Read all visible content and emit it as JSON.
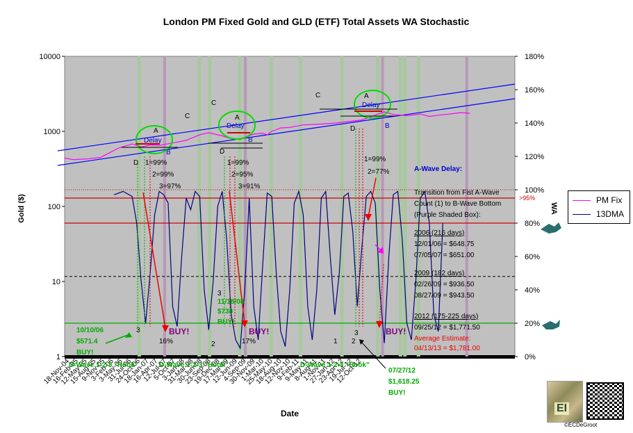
{
  "chart_data": {
    "type": "line",
    "title": "London PM Fixed Gold and GLD (ETF) Total Assets WA Stochastic",
    "xlabel": "Date",
    "ylabel": "Gold ($)",
    "y2label": "WA",
    "y_scale": "log",
    "ylim": [
      1,
      10000
    ],
    "y_ticks": [
      "1",
      "10",
      "100",
      "1000",
      "10000"
    ],
    "y2lim": [
      0,
      180
    ],
    "y2_ticks": [
      "0%",
      "20%",
      "40%",
      "60%",
      "80%",
      "100%",
      "120%",
      "140%",
      "160%",
      "180%"
    ],
    "x_tick_labels": [
      "18-Nov-04",
      "16-Feb-05",
      "12-May-05",
      "15-Aug-05",
      "9-Nov-05",
      "3-Feb-06",
      "3-May-06",
      "31-Jul-06",
      "24-Oct-06",
      "18-Jan-07",
      "16-Apr-07",
      "12-Jul-07",
      "5-Oct-07",
      "3-Jan-08",
      "31-Mar-08",
      "30-Jun-08",
      "23-Sep-08",
      "19-Dec-08",
      "17-Mar-09",
      "12-Jun-09",
      "4-Sep-09",
      "30-Nov-09",
      "1-Mar-10",
      "25-May-10",
      "18-Aug-10",
      "12-Nov-10",
      "9-Feb-11",
      "9-May-11",
      "8-Aug-11",
      "1-Nov-11",
      "27-Jan-12",
      "23-Apr-12",
      "19-Jul-12",
      "12-Oct-12"
    ],
    "legend": [
      {
        "name": "PM Fix",
        "color": "#ff00ff"
      },
      {
        "name": "13DMA",
        "color": "#000080"
      }
    ],
    "series": [
      {
        "name": "PM Fix",
        "axis": "left",
        "color": "#ff00ff",
        "x": [
          0,
          0.02,
          0.05,
          0.08,
          0.1,
          0.12,
          0.15,
          0.17,
          0.19,
          0.21,
          0.24,
          0.27,
          0.3,
          0.32,
          0.35,
          0.37,
          0.39,
          0.42,
          0.44,
          0.45,
          0.46,
          0.48,
          0.5,
          0.53,
          0.56,
          0.6,
          0.63,
          0.66,
          0.68,
          0.71,
          0.73,
          0.76,
          0.79,
          0.81,
          0.83,
          0.86,
          0.88,
          0.9
        ],
        "values": [
          440,
          420,
          430,
          450,
          520,
          600,
          680,
          620,
          660,
          650,
          700,
          760,
          900,
          960,
          870,
          800,
          780,
          920,
          940,
          900,
          1000,
          1110,
          1130,
          1220,
          1240,
          1290,
          1350,
          1420,
          1560,
          1820,
          1680,
          1620,
          1700,
          1580,
          1640,
          1720,
          1780,
          1740
        ]
      },
      {
        "name": "13DMA",
        "axis": "right",
        "color": "#000080",
        "x": [
          0.11,
          0.13,
          0.15,
          0.16,
          0.17,
          0.18,
          0.19,
          0.2,
          0.21,
          0.22,
          0.23,
          0.24,
          0.25,
          0.26,
          0.27,
          0.28,
          0.29,
          0.3,
          0.31,
          0.32,
          0.33,
          0.34,
          0.35,
          0.36,
          0.37,
          0.38,
          0.39,
          0.4,
          0.41,
          0.42,
          0.43,
          0.44,
          0.45,
          0.46,
          0.47,
          0.48,
          0.49,
          0.5,
          0.51,
          0.52,
          0.53,
          0.54,
          0.55,
          0.56,
          0.57,
          0.58,
          0.59,
          0.6,
          0.61,
          0.62,
          0.63,
          0.64,
          0.65,
          0.66,
          0.67,
          0.68,
          0.69,
          0.7,
          0.71,
          0.72,
          0.73,
          0.74,
          0.75,
          0.76,
          0.77,
          0.78,
          0.79,
          0.8,
          0.81,
          0.82,
          0.83,
          0.84
        ],
        "values": [
          97,
          99,
          96,
          80,
          45,
          20,
          50,
          85,
          99,
          97,
          92,
          30,
          18,
          60,
          95,
          88,
          99,
          96,
          40,
          16,
          45,
          90,
          99,
          70,
          25,
          10,
          5,
          40,
          95,
          30,
          10,
          55,
          98,
          96,
          50,
          15,
          6,
          40,
          92,
          99,
          85,
          30,
          10,
          40,
          95,
          99,
          60,
          25,
          50,
          96,
          98,
          75,
          30,
          65,
          96,
          99,
          92,
          40,
          8,
          60,
          97,
          99,
          70,
          20,
          10,
          45,
          95,
          99,
          80,
          25,
          15,
          80
        ]
      }
    ],
    "reference_lines": [
      {
        "axis": "right",
        "value": 100,
        "style": "dotted",
        "color": "#cc0000"
      },
      {
        "axis": "right",
        "value": 95,
        "style": "solid",
        "color": "#cc0000",
        "label": ">95%"
      },
      {
        "axis": "right",
        "value": 80,
        "style": "solid",
        "color": "#cc0000"
      },
      {
        "axis": "right",
        "value": 48,
        "style": "dashed",
        "color": "#000000"
      },
      {
        "axis": "right",
        "value": 20,
        "style": "solid",
        "color": "#00aa00"
      }
    ],
    "annotations": {
      "delays": [
        "Delay",
        "Delay",
        "Delay"
      ],
      "wave_letters": {
        "w1": [
          "A",
          "B",
          "C",
          "D"
        ],
        "w2": [
          "A",
          "B",
          "C",
          "D"
        ],
        "w3": [
          "A",
          "B",
          "C",
          "D"
        ]
      },
      "stoch_pct": {
        "w1": [
          "1=99%",
          "2=99%",
          "3=97%"
        ],
        "w2": [
          "1=99%",
          "2=95%",
          "3=91%"
        ],
        "w3": [
          "1=99%",
          "2=77%"
        ]
      },
      "buys": [
        "BUY!",
        "BUY!",
        "BUY!"
      ],
      "buy_pcts": [
        "16%",
        "17%"
      ],
      "numbers": [
        "3",
        "3",
        "2",
        "1",
        "2",
        "3",
        "1"
      ],
      "hooks": [
        "D-Wave 1-2-3 \"Hook\"",
        "D-Wave 1-2-3 \"Hook\"",
        "D-Wave 1-2-3 \"Hook\""
      ],
      "green_callouts": [
        {
          "date": "10/10/06",
          "price": "$571.4",
          "action": "BUY!"
        },
        {
          "date": "11/18/08",
          "price": "$738",
          "action": "BUY!"
        },
        {
          "date": "07/27/12",
          "price": "$1,618.25",
          "action": "BUY!"
        }
      ]
    },
    "info_panel": {
      "heading": "A-Wave Delay:",
      "desc": [
        "Transition from Fist A-Wave",
        "Count (1) to B-Wave Bottom",
        "(Purple Shaded Box):"
      ],
      "y2006": {
        "head": "2006 (216 days)",
        "l1": "12/01/06 = $648.75",
        "l2": "07/05/07 = $651.00"
      },
      "y2009": {
        "head": "2009 (182 days)",
        "l1": "02/26/09 = $936.50",
        "l2": "08/27/09 = $943.50"
      },
      "y2012": {
        "head": "2012 (175-225 days)",
        "l1": "09/25/12 = $1,771.50",
        "l2": "Average Estimate:",
        "l3": "04/13/13 = $1,781.00"
      }
    }
  },
  "copyright": "©ECDeGroot",
  "logo_text": "EI"
}
